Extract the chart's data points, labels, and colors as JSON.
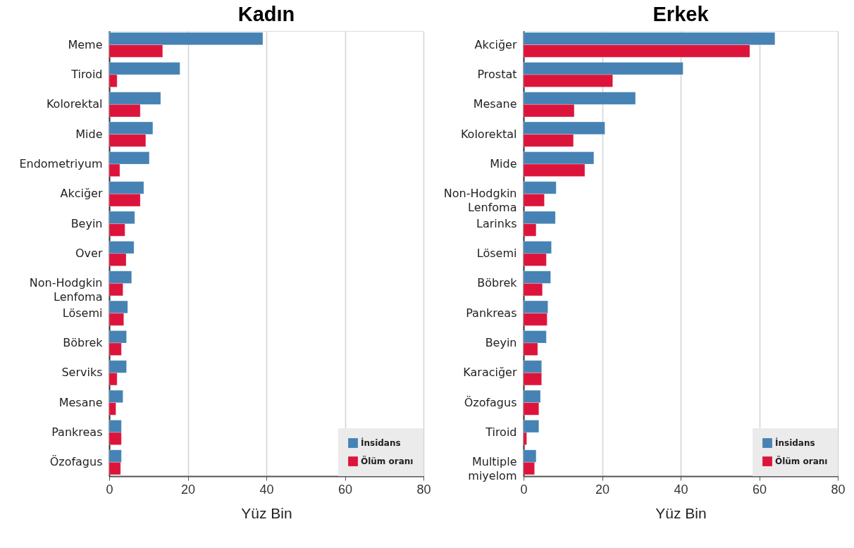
{
  "chart_data": [
    {
      "type": "bar",
      "orientation": "horizontal",
      "title": "Kadın",
      "xlabel": "Yüz Bin",
      "categories": [
        "Meme",
        "Tiroid",
        "Kolorektal",
        "Mide",
        "Endometriyum",
        "Akciğer",
        "Beyin",
        "Over",
        "Non-Hodgkin Lenfoma",
        "Lösemi",
        "Böbrek",
        "Serviks",
        "Mesane",
        "Pankreas",
        "Özofagus"
      ],
      "series": [
        {
          "name": "İnsidans",
          "color": "#4682b4",
          "values": [
            39.1,
            18.0,
            13.1,
            11.1,
            10.2,
            8.8,
            6.5,
            6.3,
            5.7,
            4.7,
            4.4,
            4.4,
            3.5,
            3.1,
            3.1
          ]
        },
        {
          "name": "Ölüm oranı",
          "color": "#dc143c",
          "values": [
            13.6,
            2.0,
            7.9,
            9.3,
            2.7,
            7.9,
            4.0,
            4.3,
            3.5,
            3.7,
            3.1,
            2.0,
            1.7,
            3.1,
            2.9
          ]
        }
      ],
      "xlim": [
        0,
        80
      ],
      "xticks": [
        0,
        20,
        40,
        60,
        80
      ],
      "grid": "x",
      "legend": "bottom right"
    },
    {
      "type": "bar",
      "orientation": "horizontal",
      "title": "Erkek",
      "xlabel": "Yüz Bin",
      "categories": [
        "Akciğer",
        "Prostat",
        "Mesane",
        "Kolorektal",
        "Mide",
        "Non-Hodgkin Lenfoma",
        "Larinks",
        "Lösemi",
        "Böbrek",
        "Pankreas",
        "Beyin",
        "Karaciğer",
        "Özofagus",
        "Tiroid",
        "Multiple miyelom"
      ],
      "series": [
        {
          "name": "İnsidans",
          "color": "#4682b4",
          "values": [
            64.0,
            40.6,
            28.5,
            20.7,
            17.9,
            8.3,
            8.1,
            7.1,
            6.9,
            6.2,
            5.8,
            4.6,
            4.3,
            3.9,
            3.2
          ]
        },
        {
          "name": "Ölüm oranı",
          "color": "#dc143c",
          "values": [
            57.6,
            22.7,
            12.9,
            12.7,
            15.6,
            5.3,
            3.2,
            5.8,
            4.8,
            6.0,
            3.6,
            4.6,
            3.9,
            0.8,
            2.8
          ]
        }
      ],
      "xlim": [
        0,
        80
      ],
      "xticks": [
        0,
        20,
        40,
        60,
        80
      ],
      "grid": "x",
      "legend": "bottom right"
    }
  ]
}
